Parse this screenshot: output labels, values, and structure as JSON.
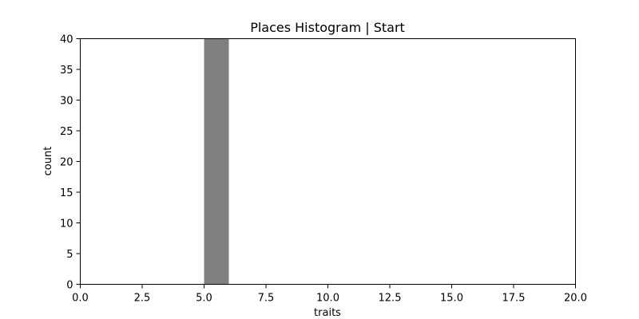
{
  "chart_data": {
    "type": "bar",
    "title": "Places Histogram | Start",
    "xlabel": "traits",
    "ylabel": "count",
    "xlim": [
      0,
      20
    ],
    "ylim": [
      0,
      40
    ],
    "xticks": [
      0,
      2.5,
      5,
      7.5,
      10,
      12.5,
      15,
      17.5,
      20
    ],
    "xtick_labels": [
      "0.0",
      "2.5",
      "5.0",
      "7.5",
      "10.0",
      "12.5",
      "15.0",
      "17.5",
      "20.0"
    ],
    "yticks": [
      0,
      5,
      10,
      15,
      20,
      25,
      30,
      35,
      40
    ],
    "ytick_labels": [
      "0",
      "5",
      "10",
      "15",
      "20",
      "25",
      "30",
      "35",
      "40"
    ],
    "bins": [
      {
        "x0": 5,
        "x1": 6,
        "count": 40
      }
    ],
    "bar_color": "#808080",
    "grid": false,
    "legend": "none"
  }
}
